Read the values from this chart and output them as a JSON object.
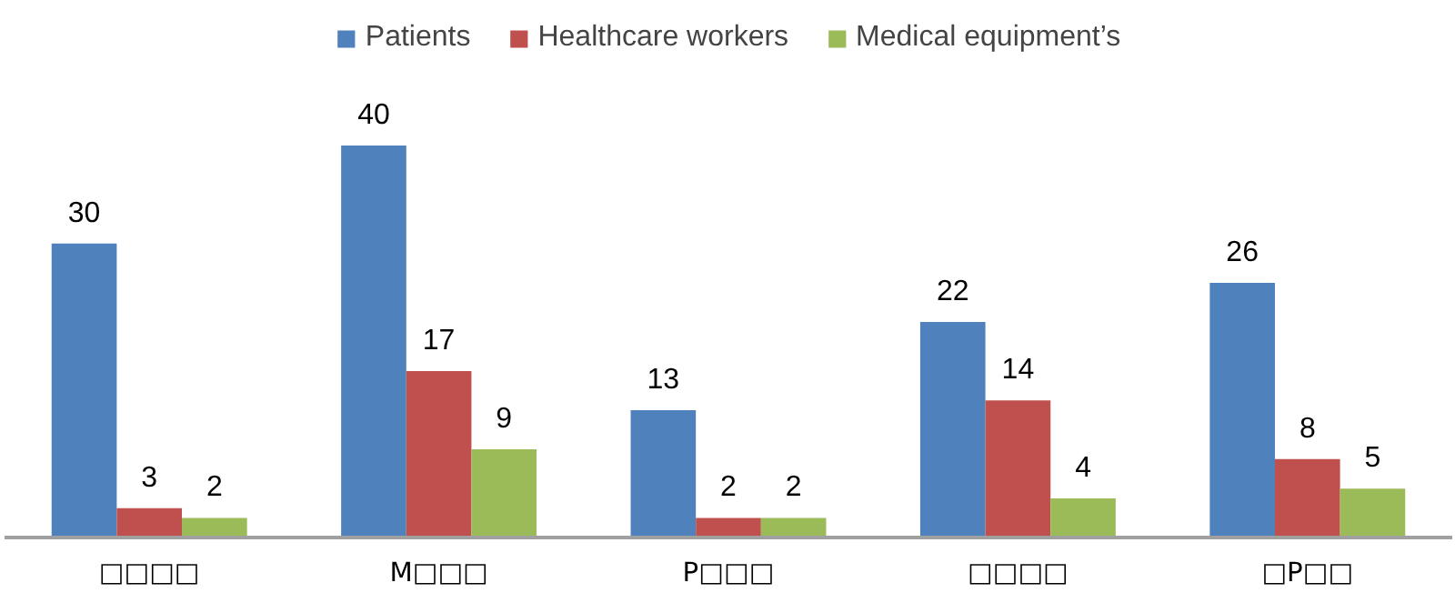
{
  "chart_data": {
    "type": "bar",
    "categories": [
      "□□□□",
      "M□□□",
      "P□□□",
      "□□□□",
      "□P□□"
    ],
    "series": [
      {
        "name": "Patients",
        "color": "#4f81bd",
        "values": [
          30,
          40,
          13,
          22,
          26
        ]
      },
      {
        "name": "Healthcare workers",
        "color": "#c0504d",
        "values": [
          3,
          17,
          2,
          14,
          8
        ]
      },
      {
        "name": "Medical equipment’s",
        "color": "#9bbb59",
        "values": [
          2,
          9,
          2,
          4,
          5
        ]
      }
    ],
    "data_labels": true,
    "legend": "top",
    "grid": false
  }
}
